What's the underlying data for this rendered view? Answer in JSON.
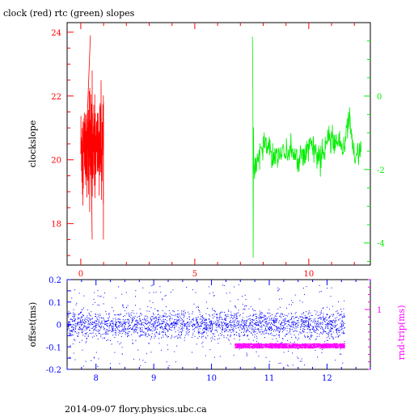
{
  "colors": {
    "clock": "#ff0000",
    "rtc": "#00ee00",
    "offset": "#0000ff",
    "rndtrip": "#ff00ff",
    "frame": "#000000",
    "background": "#ffffff"
  },
  "title": "clock (red) rtc (green) slopes",
  "footer": "2014-09-07 flory.physics.ubc.ca",
  "chart_data": [
    {
      "type": "line",
      "title": "clock (red) rtc (green) slopes",
      "xlabel": "",
      "ylabel": "clockslope",
      "xlim": [
        -0.6,
        12.7
      ],
      "ylim": [
        16.7,
        24.3
      ],
      "xticks": [
        0,
        5,
        10
      ],
      "xtick_labels": [
        "0",
        "5",
        "10"
      ],
      "yticks_left": [
        18,
        20,
        22,
        24
      ],
      "ytick_labels_left": [
        "18",
        "20",
        "22",
        "24"
      ],
      "right_axis": {
        "ylim": [
          -4.6,
          2.0
        ],
        "yticks": [
          0,
          -2,
          -4
        ],
        "ytick_labels": [
          "0",
          "-2",
          "-4"
        ]
      },
      "grid": false,
      "series": [
        {
          "name": "clock",
          "axis": "left",
          "color": "red",
          "x_range": [
            0.0,
            1.0
          ],
          "baseline": 20.4,
          "spread": 0.7,
          "min": 17.5,
          "max": 23.9
        },
        {
          "name": "rtc",
          "axis": "right",
          "color": "green",
          "x_range": [
            7.5,
            12.3
          ],
          "x": [
            7.5,
            7.6,
            8.0,
            8.5,
            9.0,
            9.5,
            10.0,
            10.5,
            11.0,
            11.5,
            11.8,
            12.0,
            12.3
          ],
          "y": [
            1.6,
            -2.0,
            -1.3,
            -1.6,
            -1.5,
            -1.7,
            -1.4,
            -1.6,
            -1.2,
            -1.4,
            -0.6,
            -1.7,
            -1.5
          ],
          "min": -4.4,
          "max": 1.6
        }
      ]
    },
    {
      "type": "scatter",
      "xlabel": "",
      "ylabel": "offset(ms)",
      "ylabel_right": "rnd-trip(ms)",
      "xlim": [
        7.5,
        12.75
      ],
      "ylim": [
        -0.2,
        0.2
      ],
      "xticks": [
        8,
        9,
        10,
        11,
        12
      ],
      "xtick_labels": [
        "8",
        "9",
        "10",
        "11",
        "12"
      ],
      "yticks_left": [
        0.2,
        0.1,
        0,
        -0.1,
        -0.2
      ],
      "ytick_labels_left": [
        "0.2",
        "0.1",
        "0",
        "-0.1",
        "-0.2"
      ],
      "right_axis": {
        "ylim": [
          0.6,
          1.2
        ],
        "yticks": [
          1
        ],
        "ytick_labels": [
          "1"
        ]
      },
      "grid": false,
      "series": [
        {
          "name": "offset",
          "axis": "left",
          "color": "blue",
          "x_range": [
            7.5,
            12.3
          ],
          "center": 0.0,
          "band_spread": 0.03,
          "outlier_range": [
            -0.19,
            0.18
          ]
        },
        {
          "name": "rnd-trip",
          "axis": "right",
          "color": "magenta",
          "x_range": [
            10.4,
            12.3
          ],
          "center": 0.76,
          "band_spread": 0.015
        }
      ]
    }
  ]
}
